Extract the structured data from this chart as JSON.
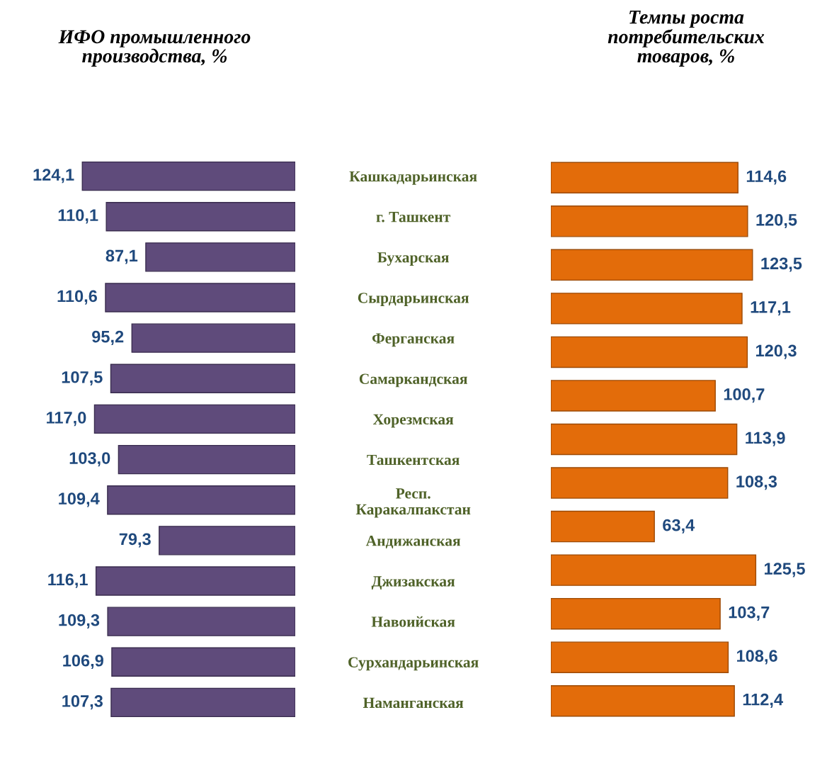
{
  "chart_data": [
    {
      "type": "bar",
      "orientation": "horizontal",
      "title": "ИФО промышленного\nпроизводства, %",
      "categories": [
        "Кашкадарьинская",
        "г. Ташкент",
        "Бухарская",
        "Сырдарьинская",
        "Ферганская",
        "Самаркандская",
        "Хорезмская",
        "Ташкентская",
        "Респ.\nКаракалпакстан",
        "Андижанская",
        "Джизакская",
        "Навоийская",
        "Сурхандарьинская",
        "Наманганская"
      ],
      "values": [
        124.1,
        110.1,
        87.1,
        110.6,
        95.2,
        107.5,
        117.0,
        103.0,
        109.4,
        79.3,
        116.1,
        109.3,
        106.9,
        107.3
      ],
      "value_labels": [
        "124,1",
        "110,1",
        "87,1",
        "110,6",
        "95,2",
        "107,5",
        "117,0",
        "103,0",
        "109,4",
        "79,3",
        "116,1",
        "109,3",
        "106,9",
        "107,3"
      ],
      "color": "#5f4b7b",
      "tick_labels": "y",
      "grid": false
    },
    {
      "type": "bar",
      "orientation": "horizontal",
      "title": "Темпы роста\nпотребительских\nтоваров, %",
      "categories": [
        null,
        null,
        null,
        null,
        null,
        null,
        null,
        null,
        null,
        null,
        null,
        null,
        null
      ],
      "values": [
        114.6,
        120.5,
        123.5,
        117.1,
        120.3,
        100.7,
        113.9,
        108.3,
        63.4,
        125.5,
        103.7,
        108.6,
        112.4
      ],
      "value_labels": [
        "114,6",
        "120,5",
        "123,5",
        "117,1",
        "120,3",
        "100,7",
        "113,9",
        "108,3",
        "63,4",
        "125,5",
        "103,7",
        "108,6",
        "112,4"
      ],
      "color": "#e36c0a",
      "tick_labels": false,
      "grid": false
    }
  ]
}
